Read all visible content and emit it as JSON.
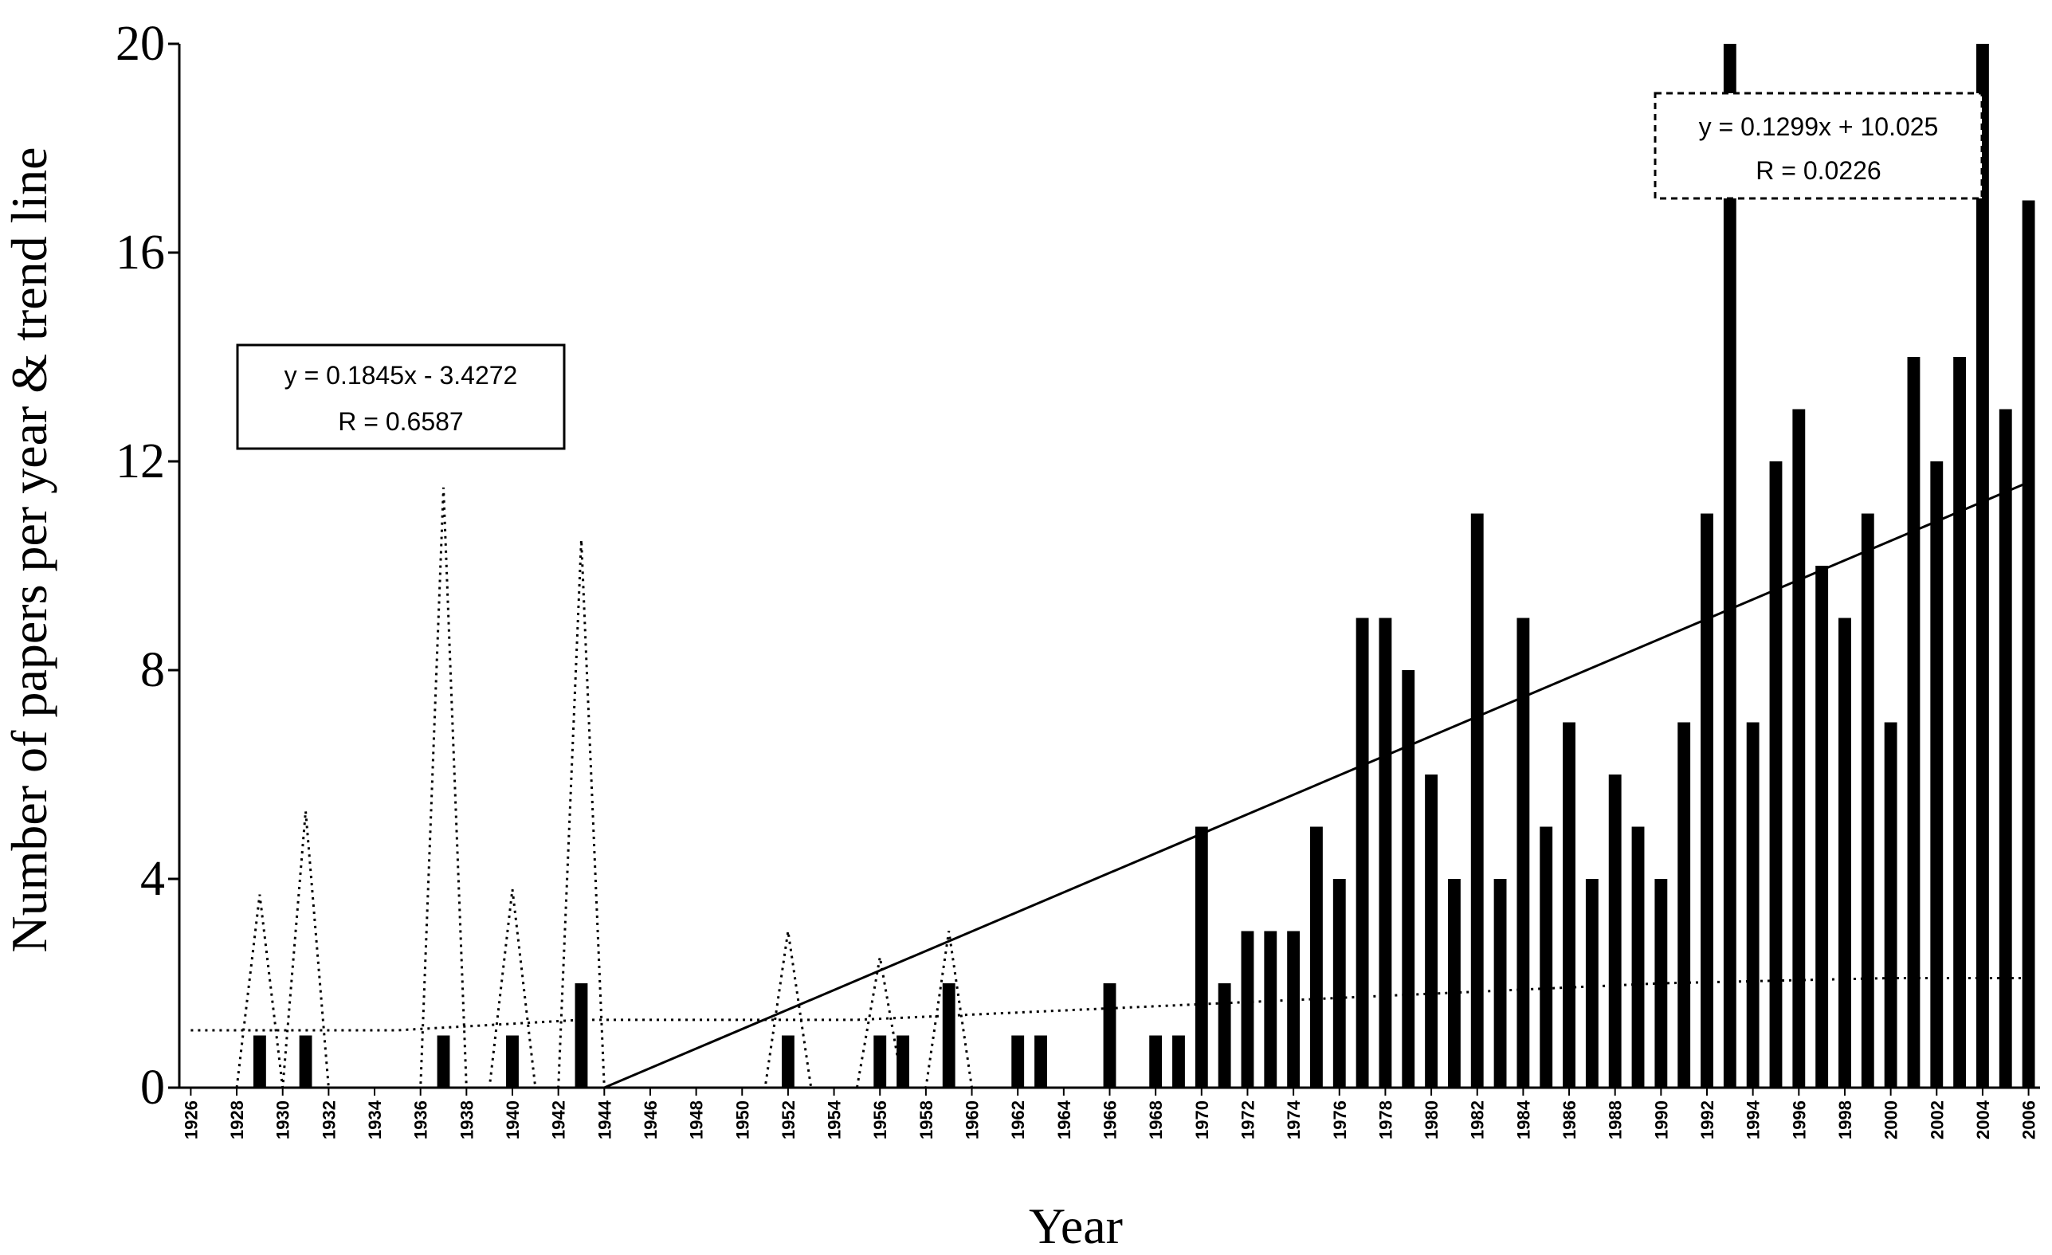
{
  "chart_data": {
    "type": "bar",
    "title": "",
    "xlabel": "Year",
    "ylabel": "Number of papers per year & trend line",
    "ylim": [
      0,
      20
    ],
    "yticks": [
      0,
      4,
      8,
      12,
      16,
      20
    ],
    "ytick_labels": [
      "0",
      "4",
      "8",
      "12",
      "16",
      "20"
    ],
    "xtick_labels": [
      "1926",
      "1928",
      "1930",
      "1932",
      "1934",
      "1936",
      "1938",
      "1940",
      "1942",
      "1944",
      "1946",
      "1948",
      "1950",
      "1952",
      "1954",
      "1956",
      "1958",
      "1960",
      "1962",
      "1964",
      "1966",
      "1968",
      "1970",
      "1972",
      "1974",
      "1976",
      "1978",
      "1980",
      "1982",
      "1984",
      "1986",
      "1988",
      "1990",
      "1992",
      "1994",
      "1996",
      "1998",
      "2000",
      "2002",
      "2004",
      "2006"
    ],
    "grid": false,
    "legend": "none",
    "series": [
      {
        "type": "bar",
        "x": [
          1926,
          1927,
          1928,
          1929,
          1930,
          1931,
          1932,
          1933,
          1934,
          1935,
          1936,
          1937,
          1938,
          1939,
          1940,
          1941,
          1942,
          1943,
          1944,
          1945,
          1946,
          1947,
          1948,
          1949,
          1950,
          1951,
          1952,
          1953,
          1954,
          1955,
          1956,
          1957,
          1958,
          1959,
          1960,
          1961,
          1962,
          1963,
          1964,
          1965,
          1966,
          1967,
          1968,
          1969,
          1970,
          1971,
          1972,
          1973,
          1974,
          1975,
          1976,
          1977,
          1978,
          1979,
          1980,
          1981,
          1982,
          1983,
          1984,
          1985,
          1986,
          1987,
          1988,
          1989,
          1990,
          1991,
          1992,
          1993,
          1994,
          1995,
          1996,
          1997,
          1998,
          1999,
          2000,
          2001,
          2002,
          2003,
          2004,
          2005,
          2006
        ],
        "values": [
          0,
          0,
          0,
          1,
          0,
          1,
          0,
          0,
          0,
          0,
          0,
          1,
          0,
          0,
          1,
          0,
          0,
          2,
          0,
          0,
          0,
          0,
          0,
          0,
          0,
          0,
          1,
          0,
          0,
          0,
          1,
          1,
          0,
          2,
          0,
          0,
          1,
          1,
          0,
          0,
          2,
          0,
          1,
          1,
          5,
          2,
          3,
          3,
          3,
          5,
          4,
          9,
          9,
          8,
          6,
          4,
          11,
          4,
          9,
          5,
          7,
          4,
          6,
          5,
          4,
          7,
          11,
          20,
          7,
          12,
          13,
          10,
          9,
          11,
          7,
          14,
          12,
          14,
          20,
          13,
          17
        ],
        "color": "#000000"
      },
      {
        "type": "line",
        "style": "dotted",
        "x": [
          1928,
          1929,
          1930,
          1931,
          1932,
          1936,
          1937,
          1938,
          1939,
          1940,
          1941,
          1942,
          1943,
          1944,
          1951,
          1952,
          1953,
          1955,
          1956,
          1957,
          1958,
          1959,
          1960
        ],
        "values": [
          0,
          3.7,
          0,
          5.3,
          0,
          0,
          11.5,
          0,
          0,
          3.8,
          0,
          0,
          10.5,
          0,
          0,
          3,
          0,
          0,
          2.5,
          0,
          0,
          3,
          0
        ],
        "color": "#000000"
      },
      {
        "type": "line",
        "style": "dotted",
        "x": [
          1926,
          1930,
          1935,
          1943,
          1955,
          1965,
          1970,
          1980,
          1990,
          2000,
          2006
        ],
        "values": [
          1.1,
          1.1,
          1.1,
          1.3,
          1.3,
          1.5,
          1.6,
          1.8,
          2,
          2.1,
          2.1
        ],
        "color": "#000000"
      },
      {
        "type": "line",
        "style": "solid",
        "x": [
          1944,
          2006
        ],
        "values": [
          0,
          11.6
        ],
        "color": "#000000"
      }
    ],
    "annotations": [
      {
        "line1": "y = 0.1845x - 3.4272",
        "line2": "R  = 0.6587",
        "style": "solid"
      },
      {
        "line1": "y = 0.1299x + 10.025",
        "line2": "R  = 0.0226",
        "style": "dashed"
      }
    ]
  }
}
